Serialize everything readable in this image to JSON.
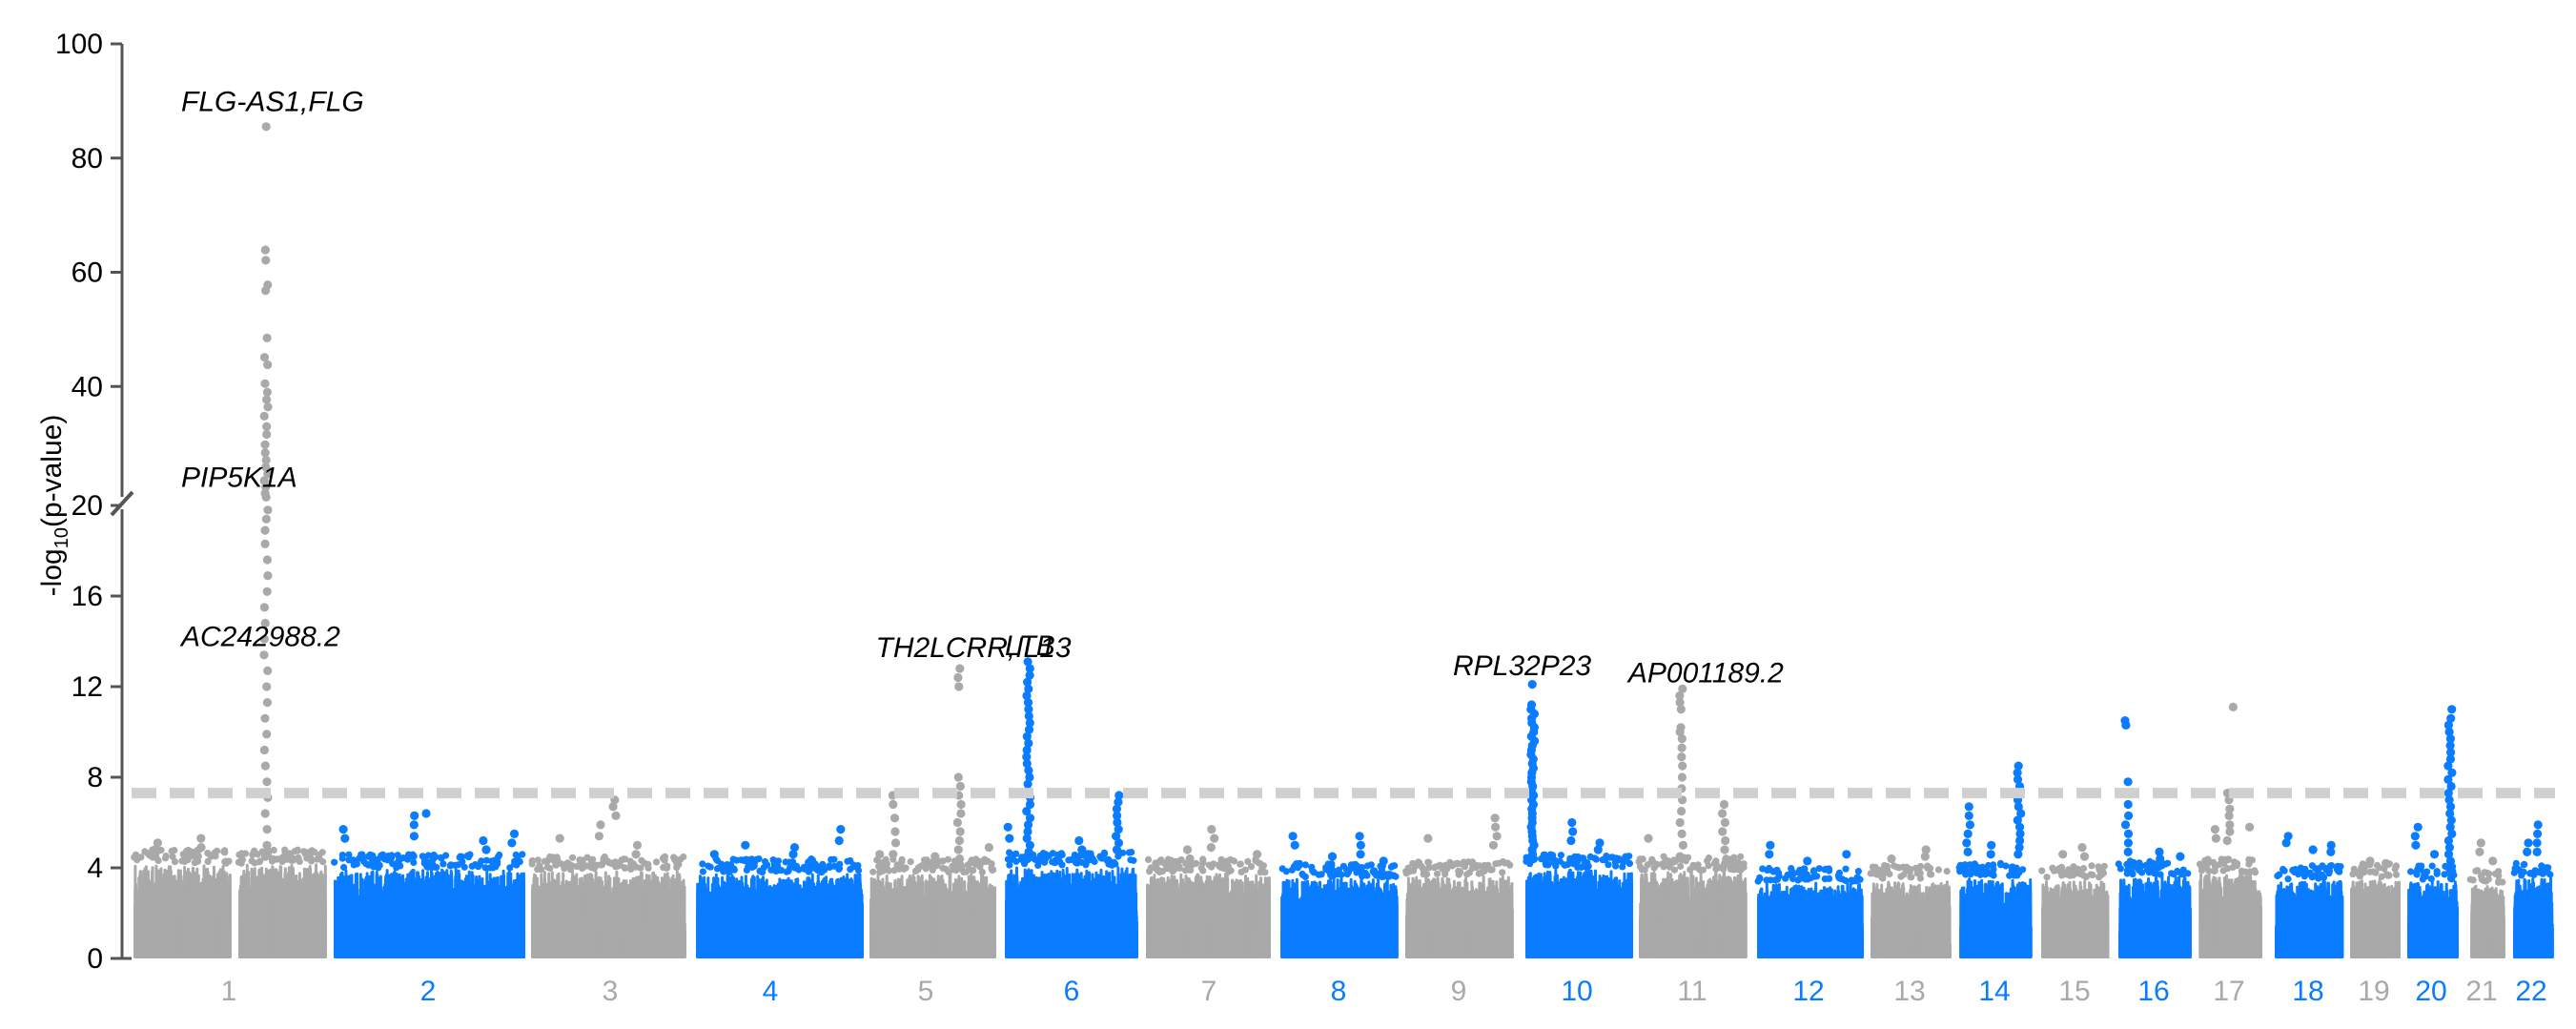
{
  "chart_data": {
    "type": "scatter",
    "subtype": "manhattan",
    "title": "",
    "xlabel": "",
    "ylabel": "-log10(p-value)",
    "ylabel_parts": {
      "base": "-log",
      "sub": "10",
      "rest": "(p-value)"
    },
    "y_axis": {
      "broken": true,
      "break_at": 20,
      "lower_range": [
        0,
        20
      ],
      "upper_range": [
        20,
        100
      ],
      "lower_ticks": [
        0,
        4,
        8,
        12,
        16
      ],
      "upper_ticks": [
        20,
        40,
        60,
        80,
        100
      ]
    },
    "significance_threshold": 7.3,
    "colors": {
      "odd": "#a9a9a9",
      "even": "#0a7cff",
      "threshold": "#d0d0d0",
      "axis": "#555555"
    },
    "chromosomes": [
      {
        "label": "1",
        "noise_max": 4.2,
        "peaks": [
          {
            "pos": 0.12,
            "values": [
              5.1,
              4.8,
              4.5
            ]
          },
          {
            "pos": 0.35,
            "values": [
              5.3,
              4.9
            ]
          },
          {
            "pos": 0.695,
            "values": [
              85.5,
              63.9,
              62.1,
              57.8,
              56.8,
              48.5,
              45.1,
              43.8,
              40.5,
              39.0,
              37.7,
              36.4,
              34.8,
              33.0,
              31.6,
              29.8,
              28.4,
              27.1,
              25.9,
              24.7,
              23.5,
              22.4,
              21.3,
              20.6,
              19.8,
              19.4,
              18.9,
              18.3,
              17.6,
              16.9,
              16.2,
              15.5,
              14.8,
              14.1,
              13.4,
              12.7,
              12.0,
              11.3,
              10.6,
              9.9,
              9.2,
              8.5,
              7.8,
              7.1,
              6.4,
              5.7,
              5.0,
              4.5
            ]
          },
          {
            "pos": 0.82,
            "values": [
              4.6
            ]
          }
        ]
      },
      {
        "label": "2",
        "noise_max": 4.0,
        "peaks": [
          {
            "pos": 0.05,
            "values": [
              5.7,
              5.3
            ]
          },
          {
            "pos": 0.42,
            "values": [
              6.3,
              5.9,
              5.4
            ]
          },
          {
            "pos": 0.5,
            "values": [
              6.4
            ]
          },
          {
            "pos": 0.8,
            "values": [
              5.2,
              4.8
            ]
          },
          {
            "pos": 0.95,
            "values": [
              5.5,
              5.1
            ]
          }
        ]
      },
      {
        "label": "3",
        "noise_max": 3.9,
        "peaks": [
          {
            "pos": 0.18,
            "values": [
              5.3
            ]
          },
          {
            "pos": 0.45,
            "values": [
              5.9,
              5.4
            ]
          },
          {
            "pos": 0.55,
            "values": [
              7.0,
              6.7,
              6.3
            ]
          },
          {
            "pos": 0.7,
            "values": [
              5.0,
              4.6
            ]
          }
        ]
      },
      {
        "label": "4",
        "noise_max": 3.8,
        "peaks": [
          {
            "pos": 0.12,
            "values": [
              4.6
            ]
          },
          {
            "pos": 0.3,
            "values": [
              5.0
            ]
          },
          {
            "pos": 0.6,
            "values": [
              4.9,
              4.6
            ]
          },
          {
            "pos": 0.87,
            "values": [
              5.7,
              5.2
            ]
          }
        ]
      },
      {
        "label": "5",
        "noise_max": 3.8,
        "peaks": [
          {
            "pos": 0.07,
            "values": [
              4.6
            ]
          },
          {
            "pos": 0.2,
            "values": [
              7.2,
              6.8,
              6.2,
              5.6,
              5.1,
              4.6
            ]
          },
          {
            "pos": 0.52,
            "values": [
              4.5,
              4.2
            ]
          },
          {
            "pos": 0.725,
            "values": [
              12.8,
              12.4,
              12.0,
              8.0,
              7.6,
              7.2,
              6.8,
              6.4,
              6.0,
              5.6,
              5.2,
              4.8,
              4.4
            ]
          },
          {
            "pos": 0.96,
            "values": [
              4.9
            ]
          }
        ]
      },
      {
        "label": "6",
        "noise_max": 4.1,
        "peaks": [
          {
            "pos": 0.03,
            "values": [
              5.8,
              5.3
            ]
          },
          {
            "pos": 0.18,
            "values": [
              13.1,
              12.8,
              12.5,
              12.2,
              11.9,
              11.6,
              11.3,
              11.0,
              10.7,
              10.4,
              10.1,
              9.8,
              9.5,
              9.2,
              8.9,
              8.6,
              8.3,
              8.0,
              7.7,
              7.4,
              7.1,
              6.8,
              6.5,
              6.2,
              5.9,
              5.6,
              5.3,
              5.0,
              4.7,
              4.4
            ]
          },
          {
            "pos": 0.58,
            "values": [
              5.2,
              4.8
            ]
          },
          {
            "pos": 0.86,
            "values": [
              7.2,
              6.9,
              6.6,
              6.3,
              6.0,
              5.7,
              5.4,
              5.1,
              4.8
            ]
          }
        ]
      },
      {
        "label": "7",
        "noise_max": 3.8,
        "peaks": [
          {
            "pos": 0.35,
            "values": [
              4.8,
              4.4
            ]
          },
          {
            "pos": 0.55,
            "values": [
              5.7,
              5.3,
              4.9
            ]
          },
          {
            "pos": 0.92,
            "values": [
              4.6
            ]
          }
        ]
      },
      {
        "label": "8",
        "noise_max": 3.6,
        "peaks": [
          {
            "pos": 0.12,
            "values": [
              5.4,
              5.0
            ]
          },
          {
            "pos": 0.45,
            "values": [
              4.5
            ]
          },
          {
            "pos": 0.7,
            "values": [
              5.4,
              5.0,
              4.6
            ]
          },
          {
            "pos": 0.9,
            "values": [
              4.3
            ]
          }
        ]
      },
      {
        "label": "9",
        "noise_max": 3.7,
        "peaks": [
          {
            "pos": 0.2,
            "values": [
              5.3
            ]
          },
          {
            "pos": 0.85,
            "values": [
              6.2,
              5.8,
              5.4,
              5.0
            ]
          }
        ]
      },
      {
        "label": "10",
        "noise_max": 4.0,
        "peaks": [
          {
            "pos": 0.07,
            "values": [
              12.1,
              11.2,
              11.0,
              10.8,
              10.6,
              10.4,
              10.2,
              10.0,
              9.8,
              9.6,
              9.4,
              9.2,
              9.0,
              8.8,
              8.6,
              8.4,
              8.2,
              8.0,
              7.8,
              7.6,
              7.4,
              7.2,
              7.0,
              6.8,
              6.6,
              6.4,
              6.2,
              6.0,
              5.8,
              5.6,
              5.4,
              5.2,
              5.0,
              4.8,
              4.6,
              4.4
            ]
          },
          {
            "pos": 0.45,
            "values": [
              6.0,
              5.6,
              5.2
            ]
          },
          {
            "pos": 0.7,
            "values": [
              5.1,
              4.8
            ]
          }
        ]
      },
      {
        "label": "11",
        "noise_max": 3.9,
        "peaks": [
          {
            "pos": 0.1,
            "values": [
              5.3
            ]
          },
          {
            "pos": 0.4,
            "values": [
              11.9,
              11.6,
              11.3,
              11.0,
              10.2,
              10.0,
              9.7,
              9.3,
              8.9,
              8.5,
              8.0,
              7.5,
              7.0,
              6.5,
              6.0,
              5.5,
              5.0,
              4.5
            ]
          },
          {
            "pos": 0.8,
            "values": [
              6.8,
              6.4,
              6.0,
              5.6,
              5.2,
              4.8
            ]
          }
        ]
      },
      {
        "label": "12",
        "noise_max": 3.4,
        "peaks": [
          {
            "pos": 0.13,
            "values": [
              5.0,
              4.6
            ]
          },
          {
            "pos": 0.5,
            "values": [
              4.3
            ]
          },
          {
            "pos": 0.85,
            "values": [
              4.6
            ]
          }
        ]
      },
      {
        "label": "13",
        "noise_max": 3.5,
        "peaks": [
          {
            "pos": 0.25,
            "values": [
              4.4
            ]
          },
          {
            "pos": 0.7,
            "values": [
              4.8,
              4.5
            ]
          }
        ]
      },
      {
        "label": "14",
        "noise_max": 3.6,
        "peaks": [
          {
            "pos": 0.13,
            "values": [
              6.7,
              6.3,
              5.9,
              5.5,
              5.1,
              4.7
            ]
          },
          {
            "pos": 0.45,
            "values": [
              5.0,
              4.6
            ]
          },
          {
            "pos": 0.85,
            "values": [
              8.5,
              8.2,
              7.9,
              7.6,
              7.3,
              7.0,
              6.7,
              6.4,
              6.1,
              5.8,
              5.5,
              5.2,
              4.9,
              4.6
            ]
          }
        ]
      },
      {
        "label": "15",
        "noise_max": 3.5,
        "peaks": [
          {
            "pos": 0.3,
            "values": [
              4.6
            ]
          },
          {
            "pos": 0.65,
            "values": [
              4.9,
              4.5
            ]
          }
        ]
      },
      {
        "label": "16",
        "noise_max": 3.7,
        "peaks": [
          {
            "pos": 0.12,
            "values": [
              10.5,
              10.3,
              7.8,
              7.3,
              6.8,
              6.3,
              5.9,
              5.5,
              5.1,
              4.7
            ]
          },
          {
            "pos": 0.6,
            "values": [
              4.7,
              4.4
            ]
          },
          {
            "pos": 0.85,
            "values": [
              4.5
            ]
          }
        ]
      },
      {
        "label": "17",
        "noise_max": 3.8,
        "peaks": [
          {
            "pos": 0.3,
            "values": [
              5.7,
              5.3
            ]
          },
          {
            "pos": 0.55,
            "values": [
              11.1
            ]
          },
          {
            "pos": 0.5,
            "values": [
              7.3,
              7.0,
              6.6,
              6.3,
              5.9,
              5.6,
              5.2
            ]
          },
          {
            "pos": 0.85,
            "values": [
              5.8
            ]
          }
        ]
      },
      {
        "label": "18",
        "noise_max": 3.5,
        "peaks": [
          {
            "pos": 0.2,
            "values": [
              5.4,
              5.1
            ]
          },
          {
            "pos": 0.55,
            "values": [
              4.8
            ]
          },
          {
            "pos": 0.82,
            "values": [
              5.0,
              4.7
            ]
          }
        ]
      },
      {
        "label": "19",
        "noise_max": 3.6,
        "peaks": [
          {
            "pos": 0.4,
            "values": [
              4.3
            ]
          },
          {
            "pos": 0.75,
            "values": [
              4.2
            ]
          }
        ]
      },
      {
        "label": "20",
        "noise_max": 3.5,
        "peaks": [
          {
            "pos": 0.2,
            "values": [
              5.8,
              5.4,
              5.0
            ]
          },
          {
            "pos": 0.55,
            "values": [
              4.6
            ]
          },
          {
            "pos": 0.88,
            "values": [
              11.0,
              10.6,
              10.3,
              10.0,
              9.7,
              9.4,
              9.1,
              8.8,
              8.5,
              8.2,
              7.9,
              7.6,
              7.3,
              7.0,
              6.7,
              6.4,
              6.1,
              5.8,
              5.5,
              5.2,
              4.9,
              4.6,
              4.3
            ]
          }
        ]
      },
      {
        "label": "21",
        "noise_max": 3.3,
        "peaks": [
          {
            "pos": 0.3,
            "values": [
              5.1,
              4.7
            ]
          },
          {
            "pos": 0.75,
            "values": [
              4.3
            ]
          }
        ]
      },
      {
        "label": "22",
        "noise_max": 3.6,
        "peaks": [
          {
            "pos": 0.35,
            "values": [
              5.1,
              4.7
            ]
          },
          {
            "pos": 0.65,
            "values": [
              5.9,
              5.5,
              5.1,
              4.7
            ]
          }
        ]
      }
    ],
    "annotations": [
      {
        "text": "FLG-AS1,FLG",
        "chrom": "1",
        "pos": 0.25,
        "y": 88.2
      },
      {
        "text": "PIP5K1A",
        "chrom": "1",
        "pos": 0.25,
        "y": 22.4
      },
      {
        "text": "AC242988.2",
        "chrom": "1",
        "pos": 0.25,
        "y": 13.8
      },
      {
        "text": "TH2LCRR,IL13",
        "chrom": "5",
        "pos": 0.05,
        "y": 13.3
      },
      {
        "text": "LTB",
        "chrom": "6",
        "pos": 0.0,
        "y": 13.4
      },
      {
        "text": "RPL32P23",
        "chrom": "9",
        "pos": 0.45,
        "y": 12.5
      },
      {
        "text": "AP001189.2",
        "chrom": "11",
        "pos": -0.1,
        "y": 12.2
      }
    ]
  }
}
